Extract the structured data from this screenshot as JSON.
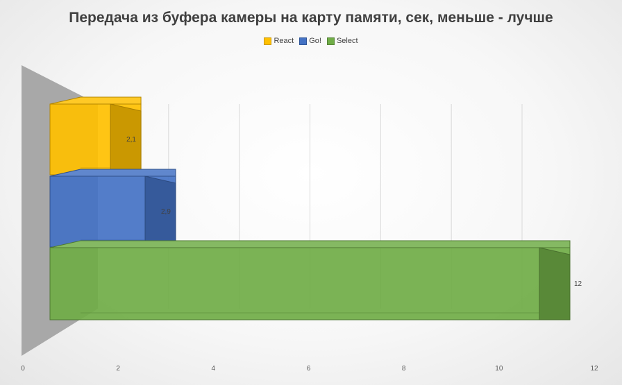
{
  "chart_data": {
    "type": "bar",
    "orientation": "horizontal",
    "style": "3d",
    "title": "Передача из буфера камеры на карту памяти, сек, меньше - лучше",
    "xlabel": "",
    "ylabel": "",
    "xlim": [
      0,
      12
    ],
    "x_ticks": [
      "0",
      "2",
      "4",
      "6",
      "8",
      "10",
      "12"
    ],
    "gridlines": true,
    "legend_position": "top",
    "series": [
      {
        "name": "React",
        "value": 2.1,
        "label": "2,1",
        "color": "#FFC000"
      },
      {
        "name": "Go!",
        "value": 2.9,
        "label": "2,9",
        "color": "#4472C4"
      },
      {
        "name": "Select",
        "value": 12,
        "label": "12",
        "color": "#70AD47"
      }
    ]
  }
}
